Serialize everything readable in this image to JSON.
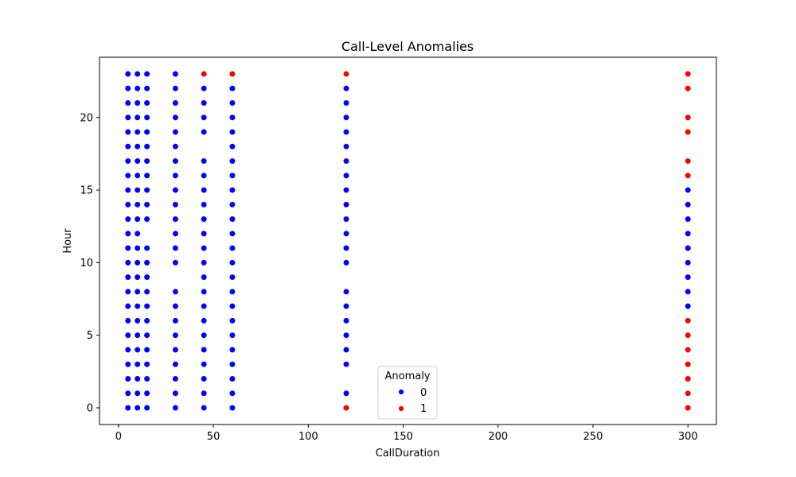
{
  "chart_data": {
    "type": "scatter",
    "title": "Call-Level Anomalies",
    "xlabel": "CallDuration",
    "ylabel": "Hour",
    "xlim": [
      -10,
      315
    ],
    "ylim": [
      -1.15,
      24.15
    ],
    "xticks": [
      0,
      50,
      100,
      150,
      200,
      250,
      300
    ],
    "yticks": [
      0,
      5,
      10,
      15,
      20
    ],
    "grid": false,
    "legend": {
      "title": "Anomaly",
      "placement": "lower-center",
      "entries": [
        "0",
        "1"
      ]
    },
    "colors": {
      "0": "#0000ff",
      "1": "#ff0000"
    },
    "series": [
      {
        "name": "0",
        "points": [
          [
            5,
            0
          ],
          [
            5,
            1
          ],
          [
            5,
            2
          ],
          [
            5,
            3
          ],
          [
            5,
            4
          ],
          [
            5,
            5
          ],
          [
            5,
            6
          ],
          [
            5,
            7
          ],
          [
            5,
            8
          ],
          [
            5,
            9
          ],
          [
            5,
            10
          ],
          [
            5,
            11
          ],
          [
            5,
            12
          ],
          [
            5,
            13
          ],
          [
            5,
            14
          ],
          [
            5,
            15
          ],
          [
            5,
            16
          ],
          [
            5,
            17
          ],
          [
            5,
            18
          ],
          [
            5,
            19
          ],
          [
            5,
            20
          ],
          [
            5,
            21
          ],
          [
            5,
            22
          ],
          [
            5,
            23
          ],
          [
            10,
            0
          ],
          [
            10,
            1
          ],
          [
            10,
            2
          ],
          [
            10,
            3
          ],
          [
            10,
            4
          ],
          [
            10,
            5
          ],
          [
            10,
            6
          ],
          [
            10,
            7
          ],
          [
            10,
            8
          ],
          [
            10,
            9
          ],
          [
            10,
            10
          ],
          [
            10,
            11
          ],
          [
            10,
            12
          ],
          [
            10,
            13
          ],
          [
            10,
            14
          ],
          [
            10,
            15
          ],
          [
            10,
            16
          ],
          [
            10,
            17
          ],
          [
            10,
            18
          ],
          [
            10,
            19
          ],
          [
            10,
            20
          ],
          [
            10,
            21
          ],
          [
            10,
            22
          ],
          [
            10,
            23
          ],
          [
            15,
            0
          ],
          [
            15,
            1
          ],
          [
            15,
            2
          ],
          [
            15,
            3
          ],
          [
            15,
            4
          ],
          [
            15,
            5
          ],
          [
            15,
            6
          ],
          [
            15,
            7
          ],
          [
            15,
            8
          ],
          [
            15,
            9
          ],
          [
            15,
            10
          ],
          [
            15,
            11
          ],
          [
            15,
            13
          ],
          [
            15,
            14
          ],
          [
            15,
            15
          ],
          [
            15,
            16
          ],
          [
            15,
            17
          ],
          [
            15,
            18
          ],
          [
            15,
            19
          ],
          [
            15,
            20
          ],
          [
            15,
            21
          ],
          [
            15,
            22
          ],
          [
            15,
            23
          ],
          [
            30,
            0
          ],
          [
            30,
            1
          ],
          [
            30,
            2
          ],
          [
            30,
            3
          ],
          [
            30,
            4
          ],
          [
            30,
            5
          ],
          [
            30,
            6
          ],
          [
            30,
            7
          ],
          [
            30,
            8
          ],
          [
            30,
            10
          ],
          [
            30,
            11
          ],
          [
            30,
            12
          ],
          [
            30,
            13
          ],
          [
            30,
            14
          ],
          [
            30,
            15
          ],
          [
            30,
            16
          ],
          [
            30,
            17
          ],
          [
            30,
            18
          ],
          [
            30,
            19
          ],
          [
            30,
            20
          ],
          [
            30,
            21
          ],
          [
            30,
            22
          ],
          [
            30,
            23
          ],
          [
            45,
            0
          ],
          [
            45,
            1
          ],
          [
            45,
            2
          ],
          [
            45,
            3
          ],
          [
            45,
            4
          ],
          [
            45,
            5
          ],
          [
            45,
            6
          ],
          [
            45,
            7
          ],
          [
            45,
            8
          ],
          [
            45,
            9
          ],
          [
            45,
            10
          ],
          [
            45,
            11
          ],
          [
            45,
            12
          ],
          [
            45,
            13
          ],
          [
            45,
            14
          ],
          [
            45,
            15
          ],
          [
            45,
            16
          ],
          [
            45,
            17
          ],
          [
            45,
            19
          ],
          [
            45,
            20
          ],
          [
            45,
            21
          ],
          [
            45,
            22
          ],
          [
            60,
            0
          ],
          [
            60,
            1
          ],
          [
            60,
            2
          ],
          [
            60,
            3
          ],
          [
            60,
            4
          ],
          [
            60,
            5
          ],
          [
            60,
            6
          ],
          [
            60,
            7
          ],
          [
            60,
            8
          ],
          [
            60,
            9
          ],
          [
            60,
            10
          ],
          [
            60,
            11
          ],
          [
            60,
            12
          ],
          [
            60,
            13
          ],
          [
            60,
            14
          ],
          [
            60,
            15
          ],
          [
            60,
            16
          ],
          [
            60,
            17
          ],
          [
            60,
            18
          ],
          [
            60,
            19
          ],
          [
            60,
            20
          ],
          [
            60,
            21
          ],
          [
            60,
            22
          ],
          [
            120,
            1
          ],
          [
            120,
            3
          ],
          [
            120,
            4
          ],
          [
            120,
            5
          ],
          [
            120,
            6
          ],
          [
            120,
            7
          ],
          [
            120,
            8
          ],
          [
            120,
            10
          ],
          [
            120,
            11
          ],
          [
            120,
            12
          ],
          [
            120,
            13
          ],
          [
            120,
            14
          ],
          [
            120,
            15
          ],
          [
            120,
            16
          ],
          [
            120,
            17
          ],
          [
            120,
            18
          ],
          [
            120,
            19
          ],
          [
            120,
            20
          ],
          [
            120,
            21
          ],
          [
            120,
            22
          ],
          [
            300,
            7
          ],
          [
            300,
            8
          ],
          [
            300,
            9
          ],
          [
            300,
            10
          ],
          [
            300,
            11
          ],
          [
            300,
            12
          ],
          [
            300,
            13
          ],
          [
            300,
            14
          ],
          [
            300,
            15
          ]
        ]
      },
      {
        "name": "1",
        "points": [
          [
            45,
            23
          ],
          [
            60,
            23
          ],
          [
            120,
            0
          ],
          [
            120,
            23
          ],
          [
            300,
            0
          ],
          [
            300,
            1
          ],
          [
            300,
            2
          ],
          [
            300,
            3
          ],
          [
            300,
            4
          ],
          [
            300,
            5
          ],
          [
            300,
            6
          ],
          [
            300,
            16
          ],
          [
            300,
            17
          ],
          [
            300,
            19
          ],
          [
            300,
            20
          ],
          [
            300,
            22
          ],
          [
            300,
            23
          ]
        ]
      }
    ]
  }
}
